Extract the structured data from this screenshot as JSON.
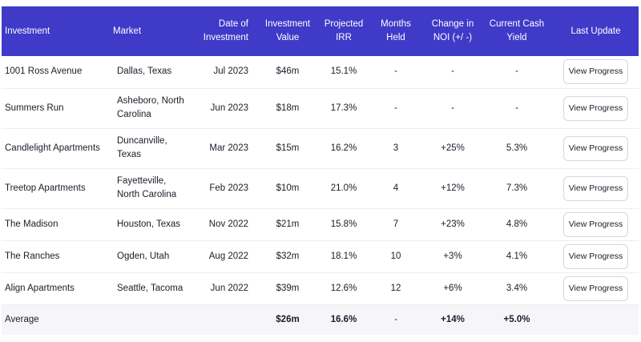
{
  "colors": {
    "header_bg": "#3f3ac8",
    "average_bg": "#f6f6f9"
  },
  "headers": [
    "Investment",
    "Market",
    "Date of Investment",
    "Investment Value",
    "Projected IRR",
    "Months Held",
    "Change in NOI (+/ -)",
    "Current Cash Yield",
    "Last Update"
  ],
  "rows": [
    {
      "investment": "1001 Ross Avenue",
      "market": "Dallas, Texas",
      "date": "Jul 2023",
      "value": "$46m",
      "irr": "15.1%",
      "months": "-",
      "noi": "-",
      "yield": "-",
      "action": "View Progress"
    },
    {
      "investment": "Summers Run",
      "market": "Asheboro, North Carolina",
      "date": "Jun 2023",
      "value": "$18m",
      "irr": "17.3%",
      "months": "-",
      "noi": "-",
      "yield": "-",
      "action": "View Progress"
    },
    {
      "investment": "Candlelight Apartments",
      "market": "Duncanville, Texas",
      "date": "Mar 2023",
      "value": "$15m",
      "irr": "16.2%",
      "months": "3",
      "noi": "+25%",
      "yield": "5.3%",
      "action": "View Progress"
    },
    {
      "investment": "Treetop Apartments",
      "market": "Fayetteville, North Carolina",
      "date": "Feb 2023",
      "value": "$10m",
      "irr": "21.0%",
      "months": "4",
      "noi": "+12%",
      "yield": "7.3%",
      "action": "View Progress"
    },
    {
      "investment": "The Madison",
      "market": "Houston, Texas",
      "date": "Nov 2022",
      "value": "$21m",
      "irr": "15.8%",
      "months": "7",
      "noi": "+23%",
      "yield": "4.8%",
      "action": "View Progress"
    },
    {
      "investment": "The Ranches",
      "market": "Ogden, Utah",
      "date": "Aug 2022",
      "value": "$32m",
      "irr": "18.1%",
      "months": "10",
      "noi": "+3%",
      "yield": "4.1%",
      "action": "View Progress"
    },
    {
      "investment": "Align Apartments",
      "market": "Seattle, Tacoma",
      "date": "Jun 2022",
      "value": "$39m",
      "irr": "12.6%",
      "months": "12",
      "noi": "+6%",
      "yield": "3.4%",
      "action": "View Progress"
    }
  ],
  "average": {
    "label": "Average",
    "value": "$26m",
    "irr": "16.6%",
    "months": "-",
    "noi": "+14%",
    "yield": "+5.0%"
  }
}
